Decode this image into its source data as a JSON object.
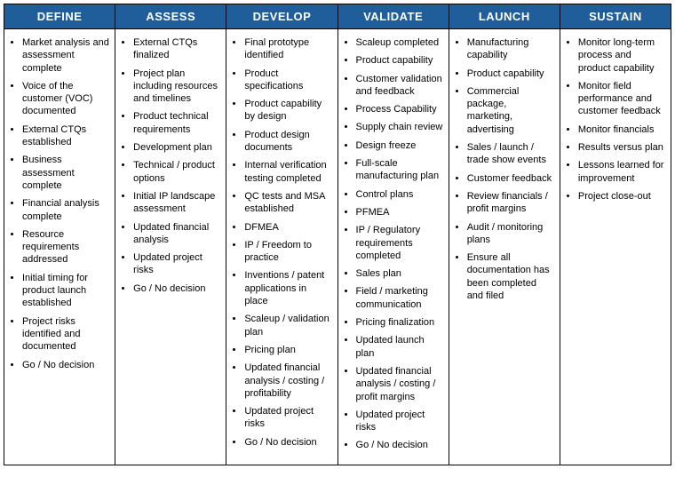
{
  "header_bg": "#1f5d9b",
  "header_fg": "#ffffff",
  "columns": [
    {
      "title": "DEFINE",
      "items": [
        "Market analysis and assessment complete",
        "Voice of the customer (VOC) documented",
        "External CTQs established",
        "Business assessment complete",
        "Financial analysis complete",
        "Resource requirements addressed",
        "Initial timing for product launch established",
        "Project risks identified and documented",
        "Go / No decision"
      ]
    },
    {
      "title": "ASSESS",
      "items": [
        "External CTQs finalized",
        "Project plan including resources and timelines",
        "Product technical requirements",
        "Development plan",
        "Technical / product options",
        "Initial IP landscape assessment",
        "Updated financial analysis",
        "Updated project risks",
        "Go / No decision"
      ]
    },
    {
      "title": "DEVELOP",
      "items": [
        "Final prototype identified",
        "Product specifications",
        "Product capability by design",
        "Product design documents",
        "Internal verification testing completed",
        "QC tests and MSA established",
        "DFMEA",
        "IP / Freedom to practice",
        "Inventions / patent applications in place",
        "Scaleup / validation plan",
        "Pricing plan",
        "Updated financial analysis / costing / profitability",
        "Updated project risks",
        "Go / No decision"
      ]
    },
    {
      "title": "VALIDATE",
      "items": [
        "Scaleup completed",
        "Product capability",
        "Customer validation and feedback",
        "Process Capability",
        "Supply chain review",
        "Design freeze",
        "Full-scale manufacturing plan",
        "Control plans",
        "PFMEA",
        "IP / Regulatory requirements completed",
        "Sales plan",
        "Field / marketing communication",
        "Pricing finalization",
        "Updated launch plan",
        "Updated financial analysis / costing / profit margins",
        "Updated project risks",
        "Go / No decision"
      ]
    },
    {
      "title": "LAUNCH",
      "items": [
        "Manufacturing capability",
        "Product capability",
        "Commercial package, marketing, advertising",
        "Sales / launch / trade show events",
        "Customer feedback",
        "Review financials / profit margins",
        "Audit / monitoring plans",
        "Ensure all documentation has been completed and filed"
      ]
    },
    {
      "title": "SUSTAIN",
      "items": [
        "Monitor long-term process and product capability",
        "Monitor field performance and customer feedback",
        "Monitor financials",
        "Results versus plan",
        "Lessons learned for improvement",
        "Project close-out"
      ]
    }
  ]
}
